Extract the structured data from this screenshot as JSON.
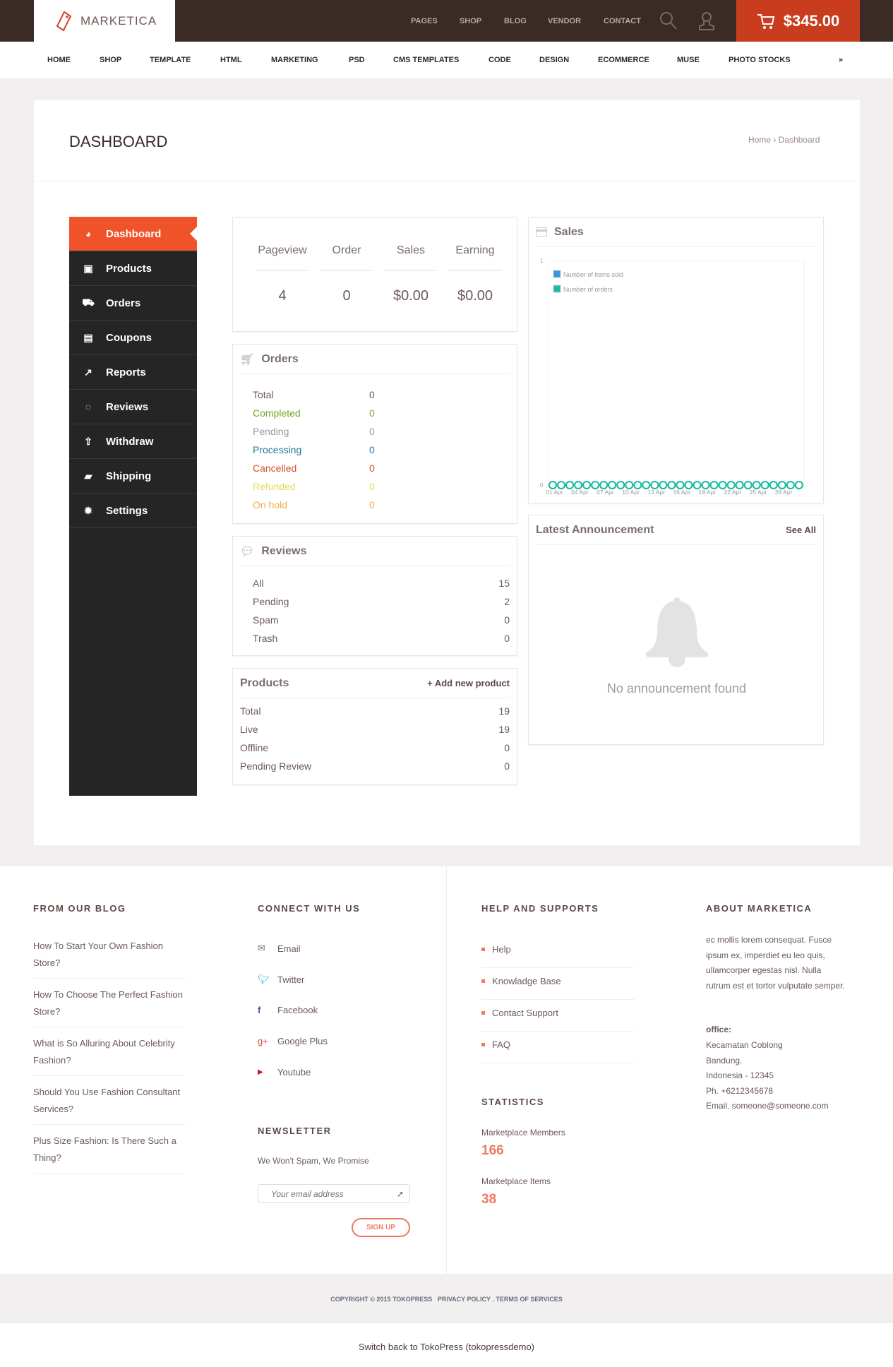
{
  "header": {
    "logo": "MARKETICA",
    "top_links": [
      "PAGES",
      "SHOP",
      "BLOG",
      "VENDOR",
      "CONTACT"
    ],
    "cart_total": "$345.00",
    "accent": "#c93c1e"
  },
  "nav": [
    "HOME",
    "SHOP",
    "TEMPLATE",
    "HTML",
    "MARKETING",
    "PSD",
    "CMS TEMPLATES",
    "CODE",
    "DESIGN",
    "ECOMMERCE",
    "MUSE",
    "PHOTO STOCKS"
  ],
  "page": {
    "title": "DASHBOARD",
    "breadcrumb": "Home › Dashboard"
  },
  "sidebar": [
    {
      "label": "Dashboard",
      "icon": "dashboard-icon"
    },
    {
      "label": "Products",
      "icon": "briefcase-icon"
    },
    {
      "label": "Orders",
      "icon": "cart-icon"
    },
    {
      "label": "Coupons",
      "icon": "gift-icon"
    },
    {
      "label": "Reports",
      "icon": "chart-icon"
    },
    {
      "label": "Reviews",
      "icon": "comments-icon"
    },
    {
      "label": "Withdraw",
      "icon": "upload-icon"
    },
    {
      "label": "Shipping",
      "icon": "truck-icon"
    },
    {
      "label": "Settings",
      "icon": "gear-icon"
    }
  ],
  "stats": [
    {
      "label": "Pageview",
      "value": "4"
    },
    {
      "label": "Order",
      "value": "0"
    },
    {
      "label": "Sales",
      "value": "$0.00"
    },
    {
      "label": "Earning",
      "value": "$0.00"
    }
  ],
  "orders": {
    "title": "Orders",
    "rows": [
      {
        "label": "Total",
        "value": "0",
        "color": "#6b5a55"
      },
      {
        "label": "Completed",
        "value": "0",
        "color": "#73a724"
      },
      {
        "label": "Pending",
        "value": "0",
        "color": "#999999"
      },
      {
        "label": "Processing",
        "value": "0",
        "color": "#21759b"
      },
      {
        "label": "Cancelled",
        "value": "0",
        "color": "#d54e21"
      },
      {
        "label": "Refunded",
        "value": "0",
        "color": "#e6db55"
      },
      {
        "label": "On hold",
        "value": "0",
        "color": "#f0ad4e"
      }
    ]
  },
  "reviews": {
    "title": "Reviews",
    "rows": [
      {
        "label": "All",
        "value": "15"
      },
      {
        "label": "Pending",
        "value": "2"
      },
      {
        "label": "Spam",
        "value": "0"
      },
      {
        "label": "Trash",
        "value": "0"
      }
    ]
  },
  "products": {
    "title": "Products",
    "add": "+ Add new product",
    "rows": [
      {
        "label": "Total",
        "value": "19"
      },
      {
        "label": "Live",
        "value": "19"
      },
      {
        "label": "Offline",
        "value": "0"
      },
      {
        "label": "Pending Review",
        "value": "0"
      }
    ]
  },
  "sales": {
    "title": "Sales"
  },
  "chart_data": {
    "type": "line",
    "x": [
      "01 Apr",
      "02 Apr",
      "03 Apr",
      "04 Apr",
      "05 Apr",
      "06 Apr",
      "07 Apr",
      "08 Apr",
      "09 Apr",
      "10 Apr",
      "11 Apr",
      "12 Apr",
      "13 Apr",
      "14 Apr",
      "15 Apr",
      "16 Apr",
      "17 Apr",
      "18 Apr",
      "19 Apr",
      "20 Apr",
      "21 Apr",
      "22 Apr",
      "23 Apr",
      "24 Apr",
      "25 Apr",
      "26 Apr",
      "27 Apr",
      "28 Apr",
      "29 Apr",
      "30 Apr"
    ],
    "x_tick_labels": [
      "01 Apr",
      "04 Apr",
      "07 Apr",
      "10 Apr",
      "13 Apr",
      "16 Apr",
      "19 Apr",
      "22 Apr",
      "25 Apr",
      "28 Apr"
    ],
    "ylim": [
      0,
      1
    ],
    "y_tick_labels": [
      "0",
      "1"
    ],
    "legend": "top-left",
    "series": [
      {
        "name": "Number of items sold",
        "color": "#3498db",
        "values": [
          0,
          0,
          0,
          0,
          0,
          0,
          0,
          0,
          0,
          0,
          0,
          0,
          0,
          0,
          0,
          0,
          0,
          0,
          0,
          0,
          0,
          0,
          0,
          0,
          0,
          0,
          0,
          0,
          0,
          0
        ]
      },
      {
        "name": "Number of orders",
        "color": "#1abc9c",
        "values": [
          0,
          0,
          0,
          0,
          0,
          0,
          0,
          0,
          0,
          0,
          0,
          0,
          0,
          0,
          0,
          0,
          0,
          0,
          0,
          0,
          0,
          0,
          0,
          0,
          0,
          0,
          0,
          0,
          0,
          0
        ]
      }
    ]
  },
  "announcement": {
    "title": "Latest Announcement",
    "see_all": "See All",
    "empty": "No announcement found"
  },
  "footer": {
    "blog": {
      "title": "FROM OUR BLOG",
      "posts": [
        "How To Start Your Own Fashion Store?",
        "How To Choose The Perfect Fashion Store?",
        "What is So Alluring About Celebrity Fashion?",
        "Should You Use Fashion Consultant Services?",
        "Plus Size Fashion: Is There Such a Thing?"
      ]
    },
    "connect": {
      "title": "CONNECT WITH US",
      "links": [
        "Email",
        "Twitter",
        "Facebook",
        "Google Plus",
        "Youtube"
      ]
    },
    "newsletter": {
      "title": "NEWSLETTER",
      "text": "We Won't Spam, We Promise",
      "placeholder": "Your email address",
      "button": "SIGN UP"
    },
    "help": {
      "title": "HELP AND SUPPORTS",
      "links": [
        "Help",
        "Knowladge Base",
        "Contact Support",
        "FAQ"
      ]
    },
    "statistics": {
      "title": "STATISTICS",
      "members_label": "Marketplace Members",
      "members": "166",
      "items_label": "Marketplace Items",
      "items": "38"
    },
    "about": {
      "title": "ABOUT MARKETICA",
      "text": "ec mollis lorem consequat. Fusce ipsum ex, imperdiet eu leo quis, ullamcorper egestas nisl. Nulla rutrum est et tortor vulputate semper.",
      "office_label": "office:",
      "lines": [
        "Kecamatan Coblong",
        "Bandung.",
        "Indonesia - 12345",
        "Ph. +6212345678",
        "Email. someone@someone.com"
      ]
    },
    "copyright": "COPYRIGHT © 2015 TOKOPRESS",
    "policy": "PRIVACY POLICY . TERMS OF SERVICES",
    "switch_back": "Switch back to TokoPress (tokopressdemo)"
  }
}
